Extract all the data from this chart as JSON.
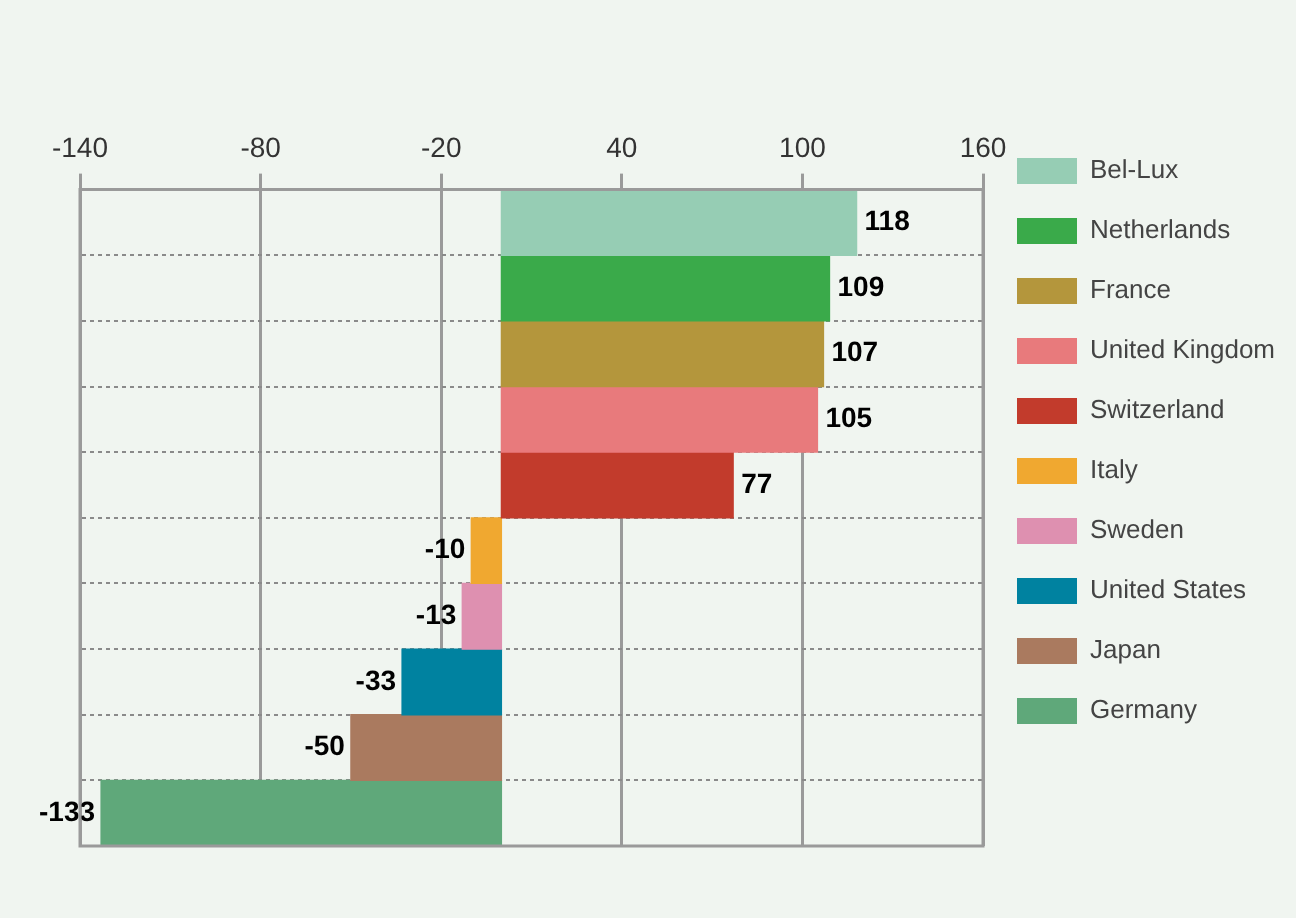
{
  "chart_data": {
    "type": "bar",
    "orientation": "horizontal",
    "categories": [
      null,
      null,
      null,
      null,
      null,
      null,
      null,
      null,
      null,
      null
    ],
    "series": [
      {
        "name": "Bel-Lux",
        "color": "#96cdb4",
        "values": [
          118,
          null,
          null,
          null,
          null,
          null,
          null,
          null,
          null,
          null
        ]
      },
      {
        "name": "Netherlands",
        "color": "#3aaa4a",
        "values": [
          null,
          109,
          null,
          null,
          null,
          null,
          null,
          null,
          null,
          null
        ]
      },
      {
        "name": "France",
        "color": "#b4963c",
        "values": [
          null,
          null,
          107,
          null,
          null,
          null,
          null,
          null,
          null,
          null
        ]
      },
      {
        "name": "United Kingdom",
        "color": "#e87a7c",
        "values": [
          null,
          null,
          null,
          105,
          null,
          null,
          null,
          null,
          null,
          null
        ]
      },
      {
        "name": "Switzerland",
        "color": "#c23b2c",
        "values": [
          null,
          null,
          null,
          null,
          77,
          null,
          null,
          null,
          null,
          null
        ]
      },
      {
        "name": "Italy",
        "color": "#f0a830",
        "values": [
          null,
          null,
          null,
          null,
          null,
          -10,
          null,
          null,
          null,
          null
        ]
      },
      {
        "name": "Sweden",
        "color": "#de90b0",
        "values": [
          null,
          null,
          null,
          null,
          null,
          null,
          -13,
          null,
          null,
          null
        ]
      },
      {
        "name": "United States",
        "color": "#0082a0",
        "values": [
          null,
          null,
          null,
          null,
          null,
          null,
          null,
          -33,
          null,
          null
        ]
      },
      {
        "name": "Japan",
        "color": "#aa7a5f",
        "values": [
          null,
          null,
          null,
          null,
          null,
          null,
          null,
          null,
          -50,
          null
        ]
      },
      {
        "name": "Germany",
        "color": "#5fa87a",
        "values": [
          null,
          null,
          null,
          null,
          null,
          null,
          null,
          null,
          null,
          -133
        ]
      }
    ],
    "xlim": [
      -140,
      160
    ],
    "xticks": [
      -140,
      -80,
      -20,
      40,
      100,
      160
    ],
    "grid": true,
    "legend": "right",
    "tick_labels": "x",
    "data_labels": true
  }
}
